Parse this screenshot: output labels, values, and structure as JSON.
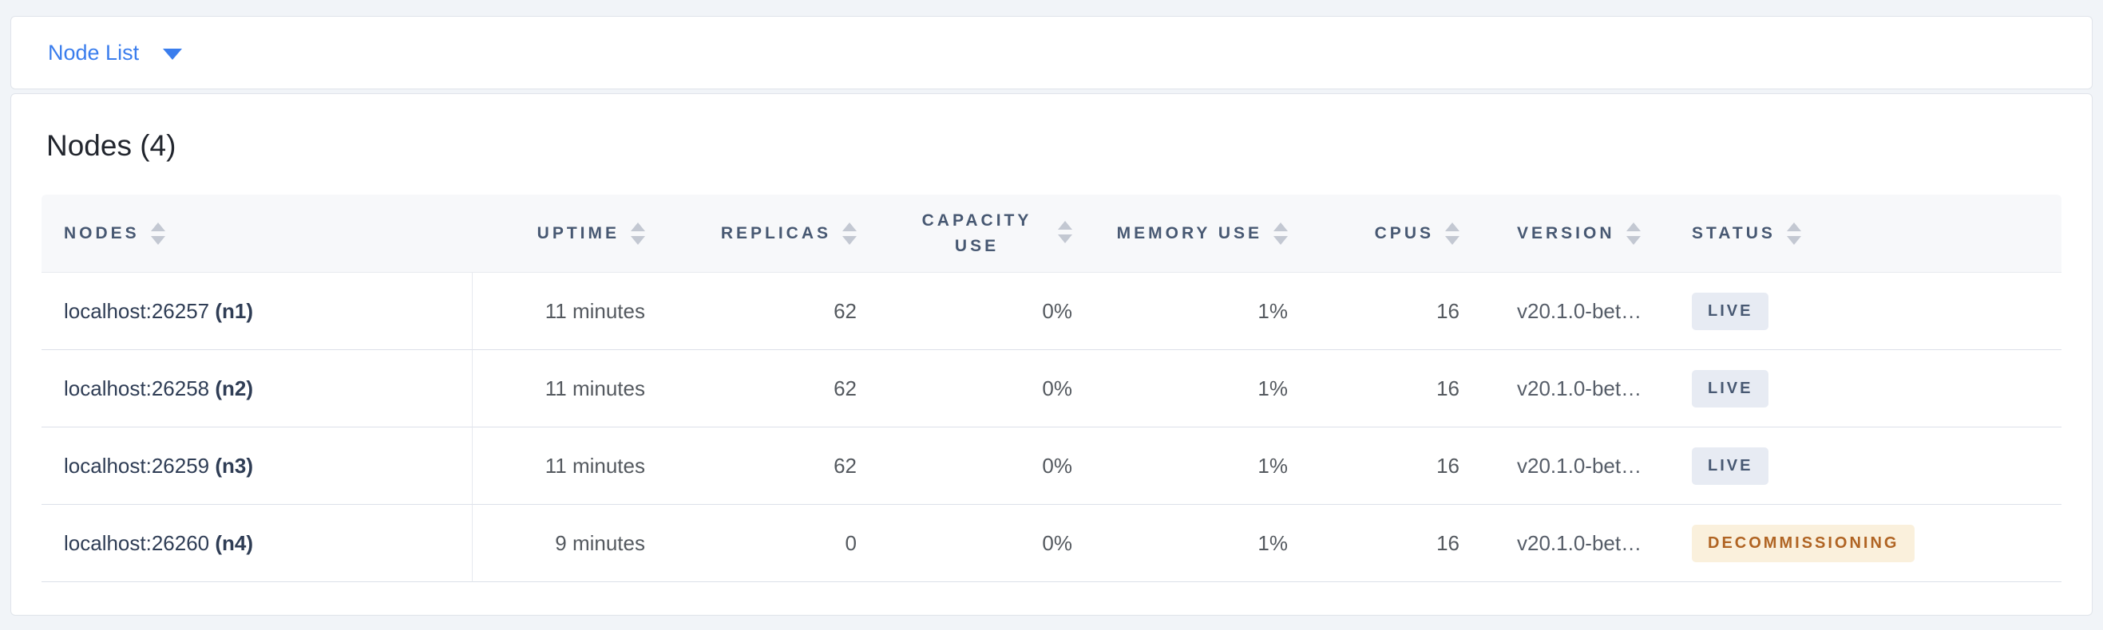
{
  "navbar": {
    "dropdown_label": "Node List",
    "dropdown_icon": "chevron-down-icon"
  },
  "main": {
    "title": "Nodes (4)"
  },
  "colors": {
    "accent_blue": "#3a7ded",
    "header_text": "#475872",
    "live_badge_bg": "#e7ebf3",
    "live_badge_text": "#475872",
    "decommissioning_badge_bg": "#faf0dc",
    "decommissioning_badge_text": "#b06423"
  },
  "table": {
    "columns": [
      {
        "id": "nodes",
        "label": "NODES"
      },
      {
        "id": "uptime",
        "label": "UPTIME"
      },
      {
        "id": "replicas",
        "label": "REPLICAS"
      },
      {
        "id": "capacity_use",
        "label": "CAPACITY USE"
      },
      {
        "id": "memory_use",
        "label": "MEMORY USE"
      },
      {
        "id": "cpus",
        "label": "CPUS"
      },
      {
        "id": "version",
        "label": "VERSION"
      },
      {
        "id": "status",
        "label": "STATUS"
      }
    ],
    "sort_icon": "sort-arrows-icon",
    "rows": [
      {
        "address": "localhost:26257",
        "node_id": "(n1)",
        "uptime": "11 minutes",
        "replicas": "62",
        "capacity_use": "0%",
        "memory_use": "1%",
        "cpus": "16",
        "version": "v20.1.0-bet…",
        "status": "LIVE"
      },
      {
        "address": "localhost:26258",
        "node_id": "(n2)",
        "uptime": "11 minutes",
        "replicas": "62",
        "capacity_use": "0%",
        "memory_use": "1%",
        "cpus": "16",
        "version": "v20.1.0-bet…",
        "status": "LIVE"
      },
      {
        "address": "localhost:26259",
        "node_id": "(n3)",
        "uptime": "11 minutes",
        "replicas": "62",
        "capacity_use": "0%",
        "memory_use": "1%",
        "cpus": "16",
        "version": "v20.1.0-bet…",
        "status": "LIVE"
      },
      {
        "address": "localhost:26260",
        "node_id": "(n4)",
        "uptime": "9 minutes",
        "replicas": "0",
        "capacity_use": "0%",
        "memory_use": "1%",
        "cpus": "16",
        "version": "v20.1.0-bet…",
        "status": "DECOMMISSIONING"
      }
    ],
    "status_styles": {
      "LIVE": {
        "bg": "#e7ebf3",
        "color": "#475872"
      },
      "DECOMMISSIONING": {
        "bg": "#faf0dc",
        "color": "#b06423"
      }
    }
  }
}
